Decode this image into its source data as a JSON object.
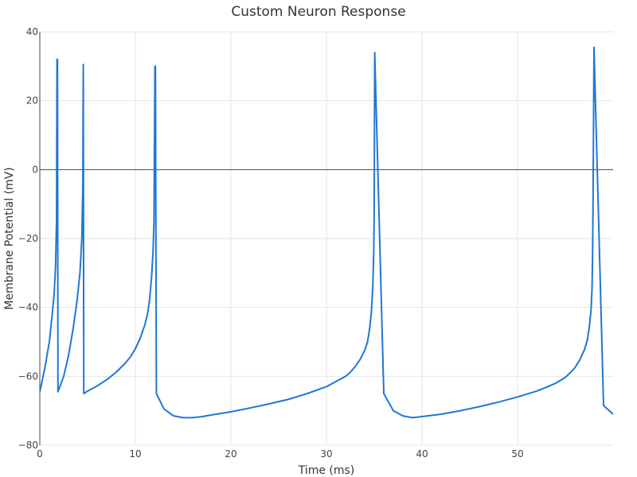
{
  "chart_data": {
    "type": "line",
    "title": "Custom Neuron Response",
    "xlabel": "Time (ms)",
    "ylabel": "Membrane Potential (mV)",
    "xlim": [
      0,
      60
    ],
    "ylim": [
      -80,
      40
    ],
    "xticks": [
      0,
      10,
      20,
      30,
      40,
      50
    ],
    "yticks": [
      -80,
      -60,
      -40,
      -20,
      0,
      20,
      40
    ],
    "grid": true,
    "zero_line": true,
    "color": "#1f77d4",
    "series": [
      {
        "x": [
          0,
          0.5,
          1.0,
          1.3,
          1.5,
          1.65,
          1.75,
          1.8,
          1.85,
          1.9,
          2.5,
          3.0,
          3.5,
          3.9,
          4.2,
          4.4,
          4.5,
          4.55,
          4.6,
          5.0,
          6.0,
          7.0,
          8.0,
          9.0,
          9.5,
          10.0,
          10.5,
          11.0,
          11.3,
          11.5,
          11.7,
          11.85,
          11.95,
          12.05,
          12.1,
          12.2,
          13.0,
          14.0,
          15.0,
          16.0,
          17.0,
          18.0,
          20.0,
          22.0,
          24.0,
          26.0,
          28.0,
          30.0,
          31.0,
          32.0,
          32.5,
          33.0,
          33.5,
          34.0,
          34.3,
          34.5,
          34.7,
          34.85,
          34.95,
          35.0,
          35.05,
          36.0,
          37.0,
          38.0,
          39.0,
          40.0,
          42.0,
          44.0,
          46.0,
          48.0,
          50.0,
          52.0,
          53.0,
          54.0,
          55.0,
          55.5,
          56.0,
          56.5,
          57.0,
          57.3,
          57.5,
          57.7,
          57.8,
          57.85,
          57.9,
          58.0,
          59.0,
          60.0
        ],
        "values": [
          -64.5,
          -58,
          -50,
          -42,
          -36,
          -28,
          -15,
          32,
          32,
          -64.5,
          -60,
          -54,
          -46,
          -38,
          -30,
          -20,
          -5,
          30.5,
          -65,
          -64.3,
          -62.8,
          -61,
          -58.8,
          -56,
          -54.3,
          -52,
          -49,
          -45,
          -41.5,
          -37.5,
          -31,
          -24,
          -15,
          30,
          30,
          -65,
          -69.5,
          -71.5,
          -72,
          -72,
          -71.7,
          -71.2,
          -70.3,
          -69.2,
          -68,
          -66.7,
          -65,
          -63,
          -61.5,
          -60,
          -58.8,
          -57.2,
          -55.2,
          -52.5,
          -50,
          -46.5,
          -41.5,
          -34,
          -24,
          -10,
          34,
          -65,
          -70,
          -71.5,
          -72,
          -71.7,
          -71,
          -70,
          -68.8,
          -67.5,
          -66,
          -64.3,
          -63.2,
          -62,
          -60.3,
          -59,
          -57.5,
          -55.3,
          -52.3,
          -49.5,
          -46,
          -40.5,
          -34,
          -25,
          -10,
          35.5,
          -68.5,
          -71
        ]
      }
    ]
  }
}
